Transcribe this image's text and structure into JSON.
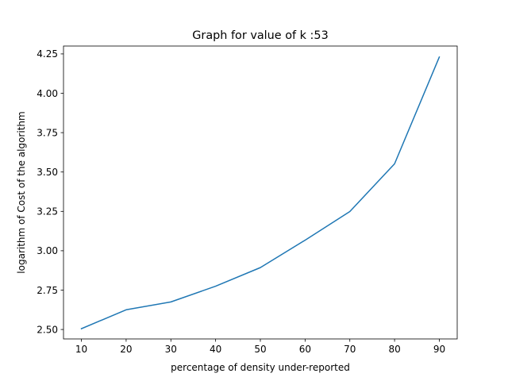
{
  "chart_data": {
    "type": "line",
    "title": "Graph for value of k :53",
    "xlabel": "percentage of density under-reported",
    "ylabel": "logarithm of Cost of the algorithm",
    "x": [
      10,
      20,
      30,
      40,
      50,
      60,
      70,
      80,
      90
    ],
    "series": [
      {
        "values": [
          2.505,
          2.625,
          2.675,
          2.775,
          2.893,
          3.067,
          3.249,
          3.552,
          4.23
        ]
      }
    ],
    "xlim": [
      6,
      94
    ],
    "ylim": [
      2.44,
      4.3
    ],
    "xticks": [
      10,
      20,
      30,
      40,
      50,
      60,
      70,
      80,
      90
    ],
    "yticks": [
      2.5,
      2.75,
      3.0,
      3.25,
      3.5,
      3.75,
      4.0,
      4.25
    ],
    "grid": false,
    "colors": {
      "line": "#1f77b4",
      "axes": "#000000"
    }
  }
}
